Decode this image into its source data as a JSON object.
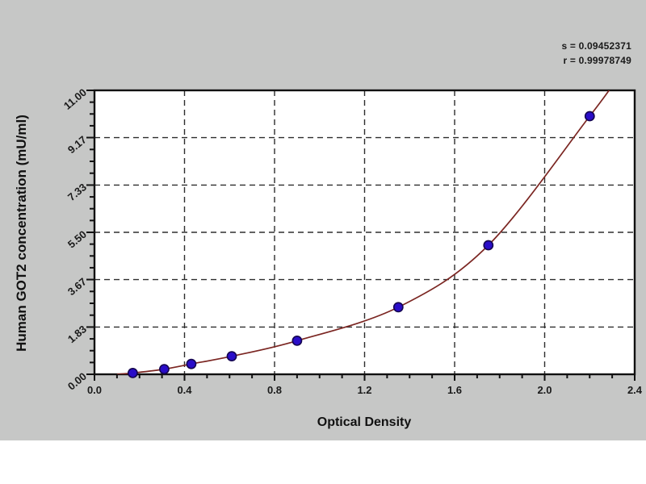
{
  "colors": {
    "background": "#c6c7c6",
    "plot_background": "#ffffff",
    "frame": "#111111",
    "grid": "#2e2e2e",
    "tick": "#111111",
    "curve": "#7b2622",
    "marker_fill": "#2a0dc8",
    "marker_edge": "#140550"
  },
  "stats": {
    "s_label": "s = 0.09452371",
    "r_label": "r = 0.99978749"
  },
  "chart_data": {
    "type": "scatter",
    "title": "",
    "xlabel": "Optical Density",
    "ylabel": "Human GOT2 concentration (mU/ml)",
    "xlim": [
      0,
      2.4
    ],
    "ylim": [
      0,
      11
    ],
    "grid": true,
    "x_major_ticks": [
      0,
      0.4,
      0.8,
      1.2,
      1.6,
      2.0,
      2.4
    ],
    "x_tick_labels": [
      "0.0",
      "0.4",
      "0.8",
      "1.2",
      "1.6",
      "2.0",
      "2.4"
    ],
    "x_minor_step": 0.1,
    "y_major_ticks": [
      0,
      1.83,
      3.67,
      5.5,
      7.33,
      9.17,
      11
    ],
    "y_tick_labels": [
      "0.00",
      "1.83",
      "3.67",
      "5.50",
      "7.33",
      "9.17",
      "11.00"
    ],
    "y_minor_divisions": 4,
    "annotations": [
      "s = 0.09452371",
      "r = 0.99978749"
    ],
    "series": [
      {
        "name": "standard-points",
        "type": "scatter",
        "color": "#2a0dc8",
        "edge_color": "#140550",
        "x": [
          0.17,
          0.31,
          0.43,
          0.61,
          0.9,
          1.35,
          1.75,
          2.2
        ],
        "y": [
          0.05,
          0.2,
          0.4,
          0.7,
          1.3,
          2.6,
          5.0,
          10.0
        ]
      },
      {
        "name": "fit-curve",
        "type": "line",
        "color": "#7b2622",
        "x": [
          0.1,
          0.17,
          0.31,
          0.43,
          0.61,
          0.9,
          1.35,
          1.75,
          2.2,
          2.31
        ],
        "y": [
          0.0,
          0.05,
          0.2,
          0.4,
          0.7,
          1.3,
          2.6,
          5.0,
          10.0,
          11.3
        ]
      }
    ]
  }
}
